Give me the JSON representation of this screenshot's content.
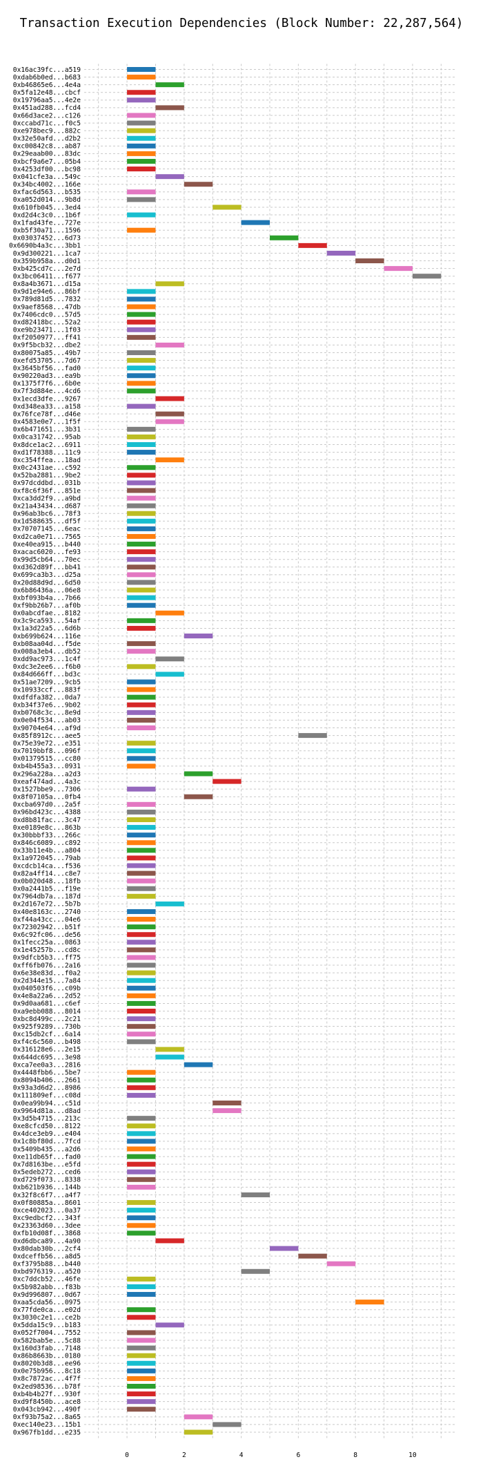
{
  "chart_data": {
    "type": "gantt",
    "title": "Transaction Execution Dependencies (Block Number: 22,287,564)",
    "xlabel": "",
    "ylabel": "",
    "xlim": [
      -1.5,
      11.5
    ],
    "xticks": [
      0,
      2,
      4,
      6,
      8,
      10
    ],
    "grid": true,
    "palette": [
      "#1f77b4",
      "#ff7f0e",
      "#2ca02c",
      "#d62728",
      "#9467bd",
      "#8c564b",
      "#e377c2",
      "#7f7f7f",
      "#bcbd22",
      "#17becf"
    ],
    "transactions": [
      {
        "label": "0x16ac39fc...a519",
        "start": 0,
        "end": 1
      },
      {
        "label": "0xdab6b0ed...b683",
        "start": 0,
        "end": 1
      },
      {
        "label": "0xb46865e6...4e4a",
        "start": 1,
        "end": 2
      },
      {
        "label": "0x5fa12e48...cbcf",
        "start": 0,
        "end": 1
      },
      {
        "label": "0x19796aa5...4e2e",
        "start": 0,
        "end": 1
      },
      {
        "label": "0x451ad288...fcd4",
        "start": 1,
        "end": 2
      },
      {
        "label": "0x66d3ace2...c126",
        "start": 0,
        "end": 1
      },
      {
        "label": "0xccabd71c...f0c5",
        "start": 0,
        "end": 1
      },
      {
        "label": "0xe978bec9...882c",
        "start": 0,
        "end": 1
      },
      {
        "label": "0x32e50afd...d2b2",
        "start": 0,
        "end": 1
      },
      {
        "label": "0xc00842c8...ab87",
        "start": 0,
        "end": 1
      },
      {
        "label": "0x29eaab00...83dc",
        "start": 0,
        "end": 1
      },
      {
        "label": "0xbcf9a6e7...05b4",
        "start": 0,
        "end": 1
      },
      {
        "label": "0x4253df00...bc98",
        "start": 0,
        "end": 1
      },
      {
        "label": "0x041cfe3a...549c",
        "start": 1,
        "end": 2
      },
      {
        "label": "0x34bc4002...166e",
        "start": 2,
        "end": 3
      },
      {
        "label": "0xfac6d563...b535",
        "start": 0,
        "end": 1
      },
      {
        "label": "0xa052d014...9b8d",
        "start": 0,
        "end": 1
      },
      {
        "label": "0x610fb045...3ed4",
        "start": 3,
        "end": 4
      },
      {
        "label": "0xd2d4c3c0...1b6f",
        "start": 0,
        "end": 1
      },
      {
        "label": "0x1fad43fe...727e",
        "start": 4,
        "end": 5
      },
      {
        "label": "0xb5f30a71...1596",
        "start": 0,
        "end": 1
      },
      {
        "label": "0x03037452...6d73",
        "start": 5,
        "end": 6
      },
      {
        "label": "0x6690b4a3c...3bb1",
        "start": 6,
        "end": 7
      },
      {
        "label": "0x9d300221...1ca7",
        "start": 7,
        "end": 8
      },
      {
        "label": "0x359b958a...d0d1",
        "start": 8,
        "end": 9
      },
      {
        "label": "0xb425cd7c...2e7d",
        "start": 9,
        "end": 10
      },
      {
        "label": "0x3bc06411...f677",
        "start": 10,
        "end": 11
      },
      {
        "label": "0x8a4b3671...d15a",
        "start": 1,
        "end": 2
      },
      {
        "label": "0x9d1e94e6...86bf",
        "start": 0,
        "end": 1
      },
      {
        "label": "0x789d81d5...7832",
        "start": 0,
        "end": 1
      },
      {
        "label": "0x9aef8568...47db",
        "start": 0,
        "end": 1
      },
      {
        "label": "0x7406cdc0...57d5",
        "start": 0,
        "end": 1
      },
      {
        "label": "0xd82418bc...52a2",
        "start": 0,
        "end": 1
      },
      {
        "label": "0xe9b23471...1f03",
        "start": 0,
        "end": 1
      },
      {
        "label": "0xf2050977...ff41",
        "start": 0,
        "end": 1
      },
      {
        "label": "0x9f5bcb32...dbe2",
        "start": 1,
        "end": 2
      },
      {
        "label": "0x80075a85...49b7",
        "start": 0,
        "end": 1
      },
      {
        "label": "0xefd53705...7d67",
        "start": 0,
        "end": 1
      },
      {
        "label": "0x3645bf56...fad0",
        "start": 0,
        "end": 1
      },
      {
        "label": "0x90220ad3...ea9b",
        "start": 0,
        "end": 1
      },
      {
        "label": "0x1375f7f6...6b0e",
        "start": 0,
        "end": 1
      },
      {
        "label": "0x7f3d884e...4cd6",
        "start": 0,
        "end": 1
      },
      {
        "label": "0x1ecd3dfe...9267",
        "start": 1,
        "end": 2
      },
      {
        "label": "0xd348ea33...a158",
        "start": 0,
        "end": 1
      },
      {
        "label": "0x76fce78f...d46e",
        "start": 1,
        "end": 2
      },
      {
        "label": "0x4583e0e7...1f5f",
        "start": 1,
        "end": 2
      },
      {
        "label": "0x6b471651...3b31",
        "start": 0,
        "end": 1
      },
      {
        "label": "0x0ca31742...95ab",
        "start": 0,
        "end": 1
      },
      {
        "label": "0x8dce1ac2...6911",
        "start": 0,
        "end": 1
      },
      {
        "label": "0xd1f78388...11c9",
        "start": 0,
        "end": 1
      },
      {
        "label": "0xc354ffea...18ad",
        "start": 1,
        "end": 2
      },
      {
        "label": "0x0c2431ae...c592",
        "start": 0,
        "end": 1
      },
      {
        "label": "0x52ba2881...9be2",
        "start": 0,
        "end": 1
      },
      {
        "label": "0x97dcddbd...031b",
        "start": 0,
        "end": 1
      },
      {
        "label": "0xf8c6f36f...851e",
        "start": 0,
        "end": 1
      },
      {
        "label": "0xca3dd2f9...a9bd",
        "start": 0,
        "end": 1
      },
      {
        "label": "0x21a43434...d687",
        "start": 0,
        "end": 1
      },
      {
        "label": "0x96ab3bc6...78f3",
        "start": 0,
        "end": 1
      },
      {
        "label": "0x1d588635...df5f",
        "start": 0,
        "end": 1
      },
      {
        "label": "0x70707145...6eac",
        "start": 0,
        "end": 1
      },
      {
        "label": "0xd2ca0e71...7565",
        "start": 0,
        "end": 1
      },
      {
        "label": "0xe40ea915...b440",
        "start": 0,
        "end": 1
      },
      {
        "label": "0xacac6020...fe93",
        "start": 0,
        "end": 1
      },
      {
        "label": "0x99d5cb64...70ec",
        "start": 0,
        "end": 1
      },
      {
        "label": "0xd362d89f...bb41",
        "start": 0,
        "end": 1
      },
      {
        "label": "0x699ca3b3...d25a",
        "start": 0,
        "end": 1
      },
      {
        "label": "0x20d88d9d...6d50",
        "start": 0,
        "end": 1
      },
      {
        "label": "0x6b86436a...06e8",
        "start": 0,
        "end": 1
      },
      {
        "label": "0xbf093b4a...7b66",
        "start": 0,
        "end": 1
      },
      {
        "label": "0xf9bb26b7...af0b",
        "start": 0,
        "end": 1
      },
      {
        "label": "0x0abcdfae...8182",
        "start": 1,
        "end": 2
      },
      {
        "label": "0x3c9ca593...54af",
        "start": 0,
        "end": 1
      },
      {
        "label": "0x1a3d22a5...6d6b",
        "start": 0,
        "end": 1
      },
      {
        "label": "0xb699b624...116e",
        "start": 2,
        "end": 3
      },
      {
        "label": "0xb08aa04d...f5de",
        "start": 0,
        "end": 1
      },
      {
        "label": "0x008a3eb4...db52",
        "start": 0,
        "end": 1
      },
      {
        "label": "0xdd9ac973...1c4f",
        "start": 1,
        "end": 2
      },
      {
        "label": "0xdc3e2ee6...f6b0",
        "start": 0,
        "end": 1
      },
      {
        "label": "0x84d666ff...bd3c",
        "start": 1,
        "end": 2
      },
      {
        "label": "0x51ae7209...9cb5",
        "start": 0,
        "end": 1
      },
      {
        "label": "0x10933ccf...883f",
        "start": 0,
        "end": 1
      },
      {
        "label": "0xdfdfa382...0da7",
        "start": 0,
        "end": 1
      },
      {
        "label": "0xb34f37e6...9b02",
        "start": 0,
        "end": 1
      },
      {
        "label": "0xb0768c3c...8e9d",
        "start": 0,
        "end": 1
      },
      {
        "label": "0x0e04f534...ab03",
        "start": 0,
        "end": 1
      },
      {
        "label": "0x90704e64...af9d",
        "start": 0,
        "end": 1
      },
      {
        "label": "0x85f8912c...aee5",
        "start": 6,
        "end": 7
      },
      {
        "label": "0x75e39e72...e351",
        "start": 0,
        "end": 1
      },
      {
        "label": "0x7019bbf8...096f",
        "start": 0,
        "end": 1
      },
      {
        "label": "0x01379515...cc80",
        "start": 0,
        "end": 1
      },
      {
        "label": "0xb4b455a3...0931",
        "start": 0,
        "end": 1
      },
      {
        "label": "0x296a228a...a2d3",
        "start": 2,
        "end": 3
      },
      {
        "label": "0xeaf474ad...4a3c",
        "start": 3,
        "end": 4
      },
      {
        "label": "0x1527bbe9...7306",
        "start": 0,
        "end": 1
      },
      {
        "label": "0x8f07105a...0fb4",
        "start": 2,
        "end": 3
      },
      {
        "label": "0xcba697d0...2a5f",
        "start": 0,
        "end": 1
      },
      {
        "label": "0x96bd423c...4388",
        "start": 0,
        "end": 1
      },
      {
        "label": "0xd8b81fac...3c47",
        "start": 0,
        "end": 1
      },
      {
        "label": "0xe0189e8c...863b",
        "start": 0,
        "end": 1
      },
      {
        "label": "0x30bbbf33...266c",
        "start": 0,
        "end": 1
      },
      {
        "label": "0x846c6089...c892",
        "start": 0,
        "end": 1
      },
      {
        "label": "0x33b11e4b...a804",
        "start": 0,
        "end": 1
      },
      {
        "label": "0x1a972045...79ab",
        "start": 0,
        "end": 1
      },
      {
        "label": "0xcdcb14ca...f536",
        "start": 0,
        "end": 1
      },
      {
        "label": "0x82a4ff14...c8e7",
        "start": 0,
        "end": 1
      },
      {
        "label": "0x0b020d48...18fb",
        "start": 0,
        "end": 1
      },
      {
        "label": "0x0a2441b5...f19e",
        "start": 0,
        "end": 1
      },
      {
        "label": "0x7964db7a...187d",
        "start": 0,
        "end": 1
      },
      {
        "label": "0x2d167e72...5b7b",
        "start": 1,
        "end": 2
      },
      {
        "label": "0x40e8163c...2740",
        "start": 0,
        "end": 1
      },
      {
        "label": "0xf44a43cc...04e6",
        "start": 0,
        "end": 1
      },
      {
        "label": "0x72302942...b51f",
        "start": 0,
        "end": 1
      },
      {
        "label": "0x6c92fc06...de56",
        "start": 0,
        "end": 1
      },
      {
        "label": "0x1fecc25a...0863",
        "start": 0,
        "end": 1
      },
      {
        "label": "0x1e45257b...cd8c",
        "start": 0,
        "end": 1
      },
      {
        "label": "0x9dfcb5b3...ff75",
        "start": 0,
        "end": 1
      },
      {
        "label": "0xff6fb076...2a16",
        "start": 0,
        "end": 1
      },
      {
        "label": "0x6e38e83d...f0a2",
        "start": 0,
        "end": 1
      },
      {
        "label": "0x2d344e15...7a84",
        "start": 0,
        "end": 1
      },
      {
        "label": "0x040503f6...c09b",
        "start": 0,
        "end": 1
      },
      {
        "label": "0x4e8a22a6...2d52",
        "start": 0,
        "end": 1
      },
      {
        "label": "0x9d0aa681...c6ef",
        "start": 0,
        "end": 1
      },
      {
        "label": "0xa9ebb088...8014",
        "start": 0,
        "end": 1
      },
      {
        "label": "0xbc8d499c...2c21",
        "start": 0,
        "end": 1
      },
      {
        "label": "0x925f9289...730b",
        "start": 0,
        "end": 1
      },
      {
        "label": "0xc15db2cf...6a14",
        "start": 0,
        "end": 1
      },
      {
        "label": "0xf4c6c560...b498",
        "start": 0,
        "end": 1
      },
      {
        "label": "0x316128e6...2e15",
        "start": 1,
        "end": 2
      },
      {
        "label": "0x644dc695...3e98",
        "start": 1,
        "end": 2
      },
      {
        "label": "0xca7ee0a3...2816",
        "start": 2,
        "end": 3
      },
      {
        "label": "0x4448fbb6...5be7",
        "start": 0,
        "end": 1
      },
      {
        "label": "0x8094b406...2661",
        "start": 0,
        "end": 1
      },
      {
        "label": "0x93a3d6d2...8986",
        "start": 0,
        "end": 1
      },
      {
        "label": "0x111809ef...c08d",
        "start": 0,
        "end": 1
      },
      {
        "label": "0x0ea99b94...c51d",
        "start": 3,
        "end": 4
      },
      {
        "label": "0x9964d81a...d8ad",
        "start": 3,
        "end": 4
      },
      {
        "label": "0x3d5b4715...213c",
        "start": 0,
        "end": 1
      },
      {
        "label": "0xe8cfcd50...8122",
        "start": 0,
        "end": 1
      },
      {
        "label": "0x4dce3eb9...e404",
        "start": 0,
        "end": 1
      },
      {
        "label": "0x1c8bf80d...7fcd",
        "start": 0,
        "end": 1
      },
      {
        "label": "0x5409b435...a2d6",
        "start": 0,
        "end": 1
      },
      {
        "label": "0xe11db65f...fad0",
        "start": 0,
        "end": 1
      },
      {
        "label": "0x7d8163be...e5fd",
        "start": 0,
        "end": 1
      },
      {
        "label": "0x5edeb272...ced6",
        "start": 0,
        "end": 1
      },
      {
        "label": "0xd729f073...8338",
        "start": 0,
        "end": 1
      },
      {
        "label": "0xb621b936...144b",
        "start": 0,
        "end": 1
      },
      {
        "label": "0x32f8c6f7...a4f7",
        "start": 4,
        "end": 5
      },
      {
        "label": "0x0f80885a...8601",
        "start": 0,
        "end": 1
      },
      {
        "label": "0xce402023...0a37",
        "start": 0,
        "end": 1
      },
      {
        "label": "0xc9edbcf2...343f",
        "start": 0,
        "end": 1
      },
      {
        "label": "0x23363d60...3dee",
        "start": 0,
        "end": 1
      },
      {
        "label": "0xfb10d08f...3868",
        "start": 0,
        "end": 1
      },
      {
        "label": "0xd6dbca89...4a90",
        "start": 1,
        "end": 2
      },
      {
        "label": "0x80dab30b...2cf4",
        "start": 5,
        "end": 6
      },
      {
        "label": "0xdceffb56...a8d5",
        "start": 6,
        "end": 7
      },
      {
        "label": "0xf3795b88...b440",
        "start": 7,
        "end": 8
      },
      {
        "label": "0xbd976319...a520",
        "start": 4,
        "end": 5
      },
      {
        "label": "0xc7ddcb52...46fe",
        "start": 0,
        "end": 1
      },
      {
        "label": "0x5b982abb...f83b",
        "start": 0,
        "end": 1
      },
      {
        "label": "0x9d996807...0d67",
        "start": 0,
        "end": 1
      },
      {
        "label": "0xaa5cda56...0975",
        "start": 8,
        "end": 9
      },
      {
        "label": "0x77fde0ca...e02d",
        "start": 0,
        "end": 1
      },
      {
        "label": "0x3030c2e1...ce2b",
        "start": 0,
        "end": 1
      },
      {
        "label": "0x5dda15c9...b183",
        "start": 1,
        "end": 2
      },
      {
        "label": "0x052f7004...7552",
        "start": 0,
        "end": 1
      },
      {
        "label": "0x582bab5e...5c88",
        "start": 0,
        "end": 1
      },
      {
        "label": "0x160d3fab...7148",
        "start": 0,
        "end": 1
      },
      {
        "label": "0x86b8663b...0180",
        "start": 0,
        "end": 1
      },
      {
        "label": "0x8020b3d8...ee96",
        "start": 0,
        "end": 1
      },
      {
        "label": "0x0e75b956...8c18",
        "start": 0,
        "end": 1
      },
      {
        "label": "0x8c7872ac...4f7f",
        "start": 0,
        "end": 1
      },
      {
        "label": "0x2ed98536...b78f",
        "start": 0,
        "end": 1
      },
      {
        "label": "0xb4b4b27f...930f",
        "start": 0,
        "end": 1
      },
      {
        "label": "0xd9f8450b...ace8",
        "start": 0,
        "end": 1
      },
      {
        "label": "0x043cb942...490f",
        "start": 0,
        "end": 1
      },
      {
        "label": "0xf93b75a2...8a65",
        "start": 2,
        "end": 3
      },
      {
        "label": "0xec140e23...15b1",
        "start": 3,
        "end": 4
      },
      {
        "label": "0x967fb1dd...e235",
        "start": 2,
        "end": 3
      }
    ]
  }
}
